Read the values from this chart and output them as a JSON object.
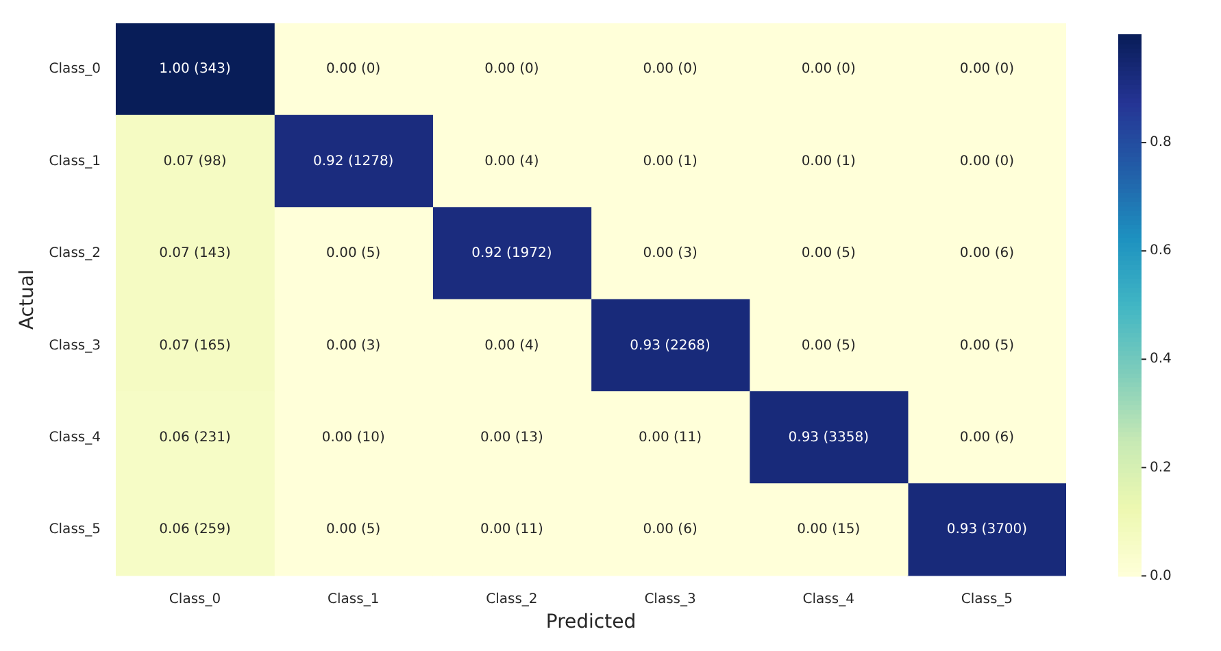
{
  "chart_data": {
    "type": "heatmap",
    "xlabel": "Predicted",
    "ylabel": "Actual",
    "categories": [
      "Class_0",
      "Class_1",
      "Class_2",
      "Class_3",
      "Class_4",
      "Class_5"
    ],
    "y_categories": [
      "Class_0",
      "Class_1",
      "Class_2",
      "Class_3",
      "Class_4",
      "Class_5"
    ],
    "cells": [
      [
        1.0,
        0.0,
        0.0,
        0.0,
        0.0,
        0.0
      ],
      [
        0.07,
        0.92,
        0.0,
        0.0,
        0.0,
        0.0
      ],
      [
        0.07,
        0.0,
        0.92,
        0.0,
        0.0,
        0.0
      ],
      [
        0.07,
        0.0,
        0.0,
        0.93,
        0.0,
        0.0
      ],
      [
        0.06,
        0.0,
        0.0,
        0.0,
        0.93,
        0.0
      ],
      [
        0.06,
        0.0,
        0.0,
        0.0,
        0.0,
        0.93
      ]
    ],
    "cell_labels": [
      [
        "1.00 (343)",
        "0.00 (0)",
        "0.00 (0)",
        "0.00 (0)",
        "0.00 (0)",
        "0.00 (0)"
      ],
      [
        "0.07 (98)",
        "0.92 (1278)",
        "0.00 (4)",
        "0.00 (1)",
        "0.00 (1)",
        "0.00 (0)"
      ],
      [
        "0.07 (143)",
        "0.00 (5)",
        "0.92 (1972)",
        "0.00 (3)",
        "0.00 (5)",
        "0.00 (6)"
      ],
      [
        "0.07 (165)",
        "0.00 (3)",
        "0.00 (4)",
        "0.93 (2268)",
        "0.00 (5)",
        "0.00 (5)"
      ],
      [
        "0.06 (231)",
        "0.00 (10)",
        "0.00 (13)",
        "0.00 (11)",
        "0.93 (3358)",
        "0.00 (6)"
      ],
      [
        "0.06 (259)",
        "0.00 (5)",
        "0.00 (11)",
        "0.00 (6)",
        "0.00 (15)",
        "0.93 (3700)"
      ]
    ],
    "clim": [
      0,
      1
    ],
    "cticks": [
      {
        "value": 0,
        "label": "0.0"
      },
      0.2,
      0.4,
      0.6,
      0.8
    ]
  }
}
